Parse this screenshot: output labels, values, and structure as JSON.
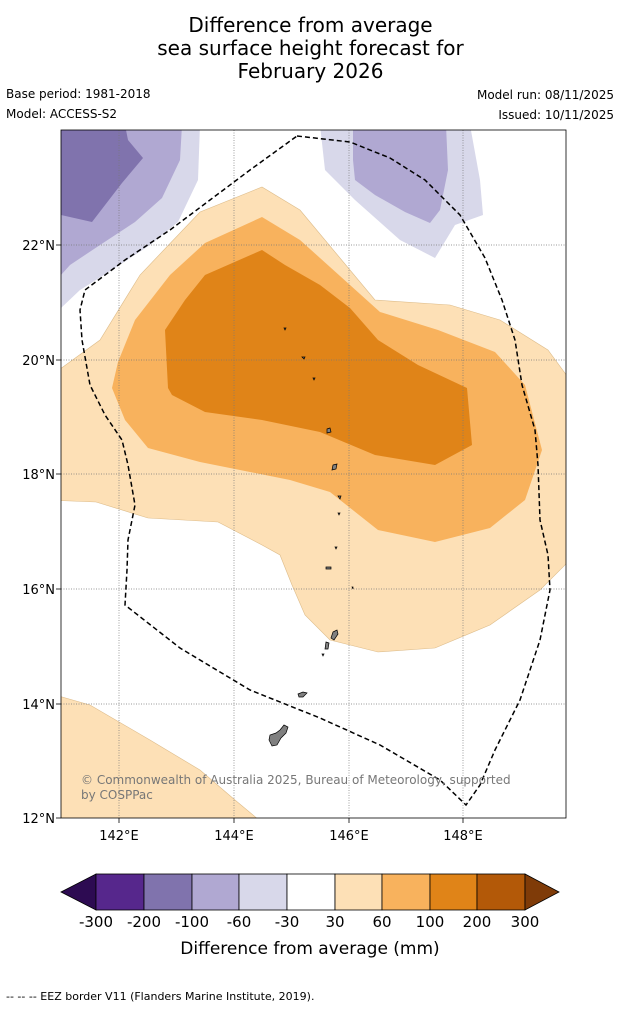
{
  "title": {
    "line1": "Difference from average",
    "line2": "sea surface height forecast for",
    "line3": "February 2026"
  },
  "meta": {
    "base_period": "Base period: 1981-2018",
    "model": "Model: ACCESS-S2",
    "model_run": "Model run: 08/11/2025",
    "issued": "Issued: 10/11/2025"
  },
  "map": {
    "lat_labels": [
      "22°N",
      "20°N",
      "18°N",
      "16°N",
      "14°N",
      "12°N"
    ],
    "lon_labels": [
      "142°E",
      "144°E",
      "146°E",
      "148°E"
    ],
    "attribution_line1": "© Commonwealth of Australia 2025, Bureau of Meteorology, supported",
    "attribution_line2": "by COSPPac",
    "colors": {
      "pos_30_60": "#fde0b6",
      "pos_60_100": "#f8b25d",
      "pos_100_200": "#e08418",
      "neg_30_60": "#d8d8ea",
      "neg_60_100": "#b0a8d2",
      "neg_100_200": "#8073ad"
    }
  },
  "colorbar": {
    "ticks": [
      "-300",
      "-200",
      "-100",
      "-60",
      "-30",
      "30",
      "60",
      "100",
      "200",
      "300"
    ],
    "label": "Difference from average (mm)",
    "colors": [
      "#2d0b52",
      "#56278c",
      "#8073ad",
      "#b0a8d2",
      "#d8d8ea",
      "#ffffff",
      "#fde0b6",
      "#f8b25d",
      "#e08418",
      "#b35908",
      "#7f3b08"
    ]
  },
  "footer": "--  --  -- EEZ border V11 (Flanders Marine Institute, 2019)."
}
